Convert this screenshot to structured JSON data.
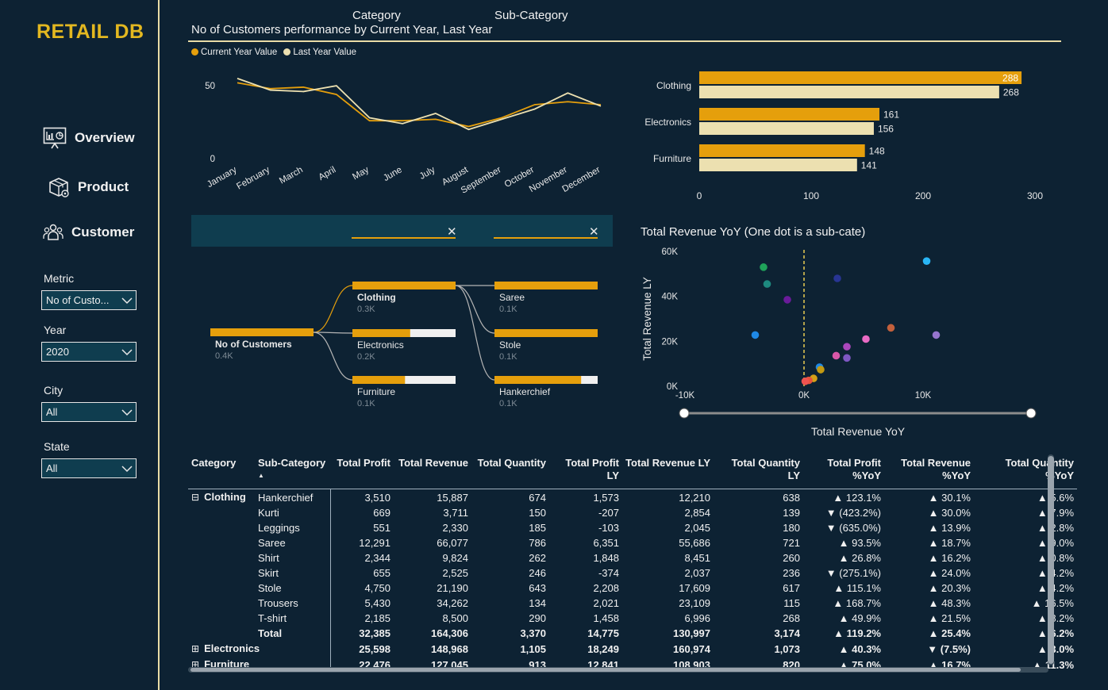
{
  "brand": "RETAIL DB",
  "nav": [
    {
      "label": "Overview",
      "icon": "monitor-chart-icon"
    },
    {
      "label": "Product",
      "icon": "package-icon"
    },
    {
      "label": "Customer",
      "icon": "users-icon"
    }
  ],
  "filters": [
    {
      "label": "Metric",
      "value": "No of Custo..."
    },
    {
      "label": "Year",
      "value": "2020"
    },
    {
      "label": "City",
      "value": "All"
    },
    {
      "label": "State",
      "value": "All"
    }
  ],
  "header": {
    "title": "No of Customers performance by Current Year, Last Year",
    "legend": [
      {
        "name": "Current Year Value",
        "color": "#e59f0c"
      },
      {
        "name": "Last Year Value",
        "color": "#ece0b0"
      }
    ]
  },
  "line_chart": {
    "type": "line",
    "x": [
      "January",
      "February",
      "March",
      "April",
      "May",
      "June",
      "July",
      "August",
      "September",
      "October",
      "November",
      "December"
    ],
    "y_ticks": [
      "0",
      "50"
    ],
    "ylim": [
      0,
      62
    ],
    "series": [
      {
        "name": "Current Year Value",
        "color": "#e59f0c",
        "values": [
          52,
          48,
          49,
          44,
          26,
          26,
          27,
          22,
          28,
          37,
          39,
          37
        ]
      },
      {
        "name": "Last Year Value",
        "color": "#ece0b0",
        "values": [
          55,
          47,
          46,
          50,
          28,
          24,
          31,
          20,
          27,
          34,
          45,
          36
        ]
      }
    ]
  },
  "bar_chart": {
    "type": "bar",
    "categories": [
      "Clothing",
      "Electronics",
      "Furniture"
    ],
    "series": [
      {
        "name": "Current Year Value",
        "color": "#e59f0c",
        "values": [
          288,
          161,
          148
        ],
        "labels": [
          "288",
          "161",
          "148"
        ]
      },
      {
        "name": "Last Year Value",
        "color": "#ece0b0",
        "values": [
          268,
          156,
          141
        ],
        "labels": [
          "268",
          "156",
          "141"
        ]
      }
    ],
    "x_ticks": [
      "0",
      "100",
      "200",
      "300"
    ],
    "xlim": [
      0,
      300
    ]
  },
  "decomp": {
    "levels": [
      "Category",
      "Sub-Category"
    ],
    "root": {
      "label": "No of Customers",
      "value": "0.4K",
      "fill": 1.0
    },
    "categories": [
      {
        "label": "Clothing",
        "value": "0.3K",
        "fill": 1.0
      },
      {
        "label": "Electronics",
        "value": "0.2K",
        "fill": 0.56
      },
      {
        "label": "Furniture",
        "value": "0.1K",
        "fill": 0.51
      }
    ],
    "subcategories": [
      {
        "label": "Saree",
        "value": "0.1K",
        "fill": 1.0
      },
      {
        "label": "Stole",
        "value": "0.1K",
        "fill": 1.0
      },
      {
        "label": "Hankerchief",
        "value": "0.1K",
        "fill": 0.84
      }
    ]
  },
  "scatter": {
    "type": "scatter",
    "title": "Total Revenue YoY (One dot is a sub-cate)",
    "xlabel": "Total Revenue YoY",
    "ylabel": "Total Revenue LY",
    "x_ticks": [
      {
        "v": -10000,
        "label": "-10K"
      },
      {
        "v": 0,
        "label": "0K"
      },
      {
        "v": 10000,
        "label": "10K"
      }
    ],
    "y_ticks": [
      {
        "v": 0,
        "label": "0K"
      },
      {
        "v": 20000,
        "label": "20K"
      },
      {
        "v": 40000,
        "label": "40K"
      },
      {
        "v": 60000,
        "label": "60K"
      }
    ],
    "xlim": [
      -10000,
      15000
    ],
    "ylim": [
      0,
      60000
    ],
    "reference_x": 0,
    "points": [
      {
        "x": -3400,
        "y": 53000,
        "color": "#1fa35a"
      },
      {
        "x": -3100,
        "y": 45500,
        "color": "#1e8a80"
      },
      {
        "x": -1400,
        "y": 38500,
        "color": "#6a1b9a"
      },
      {
        "x": -4100,
        "y": 22800,
        "color": "#1e88e5"
      },
      {
        "x": 2800,
        "y": 48000,
        "color": "#283593"
      },
      {
        "x": 10300,
        "y": 55700,
        "color": "#29b6f6"
      },
      {
        "x": 7300,
        "y": 26000,
        "color": "#c2603c"
      },
      {
        "x": 11100,
        "y": 22800,
        "color": "#9575cd"
      },
      {
        "x": 5200,
        "y": 21000,
        "color": "#e96bc4"
      },
      {
        "x": 3600,
        "y": 17600,
        "color": "#ab47bc"
      },
      {
        "x": 2700,
        "y": 13600,
        "color": "#d957a8"
      },
      {
        "x": 3600,
        "y": 12600,
        "color": "#7e57c2"
      },
      {
        "x": 1300,
        "y": 8500,
        "color": "#1e88e5"
      },
      {
        "x": 1400,
        "y": 7400,
        "color": "#c49a12"
      },
      {
        "x": 800,
        "y": 3500,
        "color": "#d4a017"
      },
      {
        "x": 400,
        "y": 2600,
        "color": "#e5533c"
      },
      {
        "x": 100,
        "y": 2200,
        "color": "#ef5350"
      }
    ]
  },
  "table": {
    "columns": [
      {
        "label": "Category",
        "num": false
      },
      {
        "label": "Sub-Category",
        "num": false
      },
      {
        "label": "Total Profit",
        "num": true
      },
      {
        "label": "Total Revenue",
        "num": true
      },
      {
        "label": "Total Quantity",
        "num": true
      },
      {
        "label": "Total Profit LY",
        "num": true
      },
      {
        "label": "Total Revenue LY",
        "num": true
      },
      {
        "label": "Total Quantity LY",
        "num": true
      },
      {
        "label": "Total Profit %YoY",
        "num": true
      },
      {
        "label": "Total Revenue %YoY",
        "num": true
      },
      {
        "label": "Total Quantity %YoY",
        "num": true
      }
    ],
    "rows": [
      {
        "toggle": "⊟",
        "category": "Clothing",
        "cells": [
          "Hankerchief",
          "3,510",
          "15,887",
          "674",
          "1,573",
          "12,210",
          "638",
          "▲ 123.1%",
          "▲ 30.1%",
          "▲ 5.6%"
        ],
        "bold": false
      },
      {
        "toggle": "",
        "category": "",
        "cells": [
          "Kurti",
          "669",
          "3,711",
          "150",
          "-207",
          "2,854",
          "139",
          "▼ (423.2%)",
          "▲ 30.0%",
          "▲ 7.9%"
        ],
        "bold": false
      },
      {
        "toggle": "",
        "category": "",
        "cells": [
          "Leggings",
          "551",
          "2,330",
          "185",
          "-103",
          "2,045",
          "180",
          "▼ (635.0%)",
          "▲ 13.9%",
          "▲ 2.8%"
        ],
        "bold": false
      },
      {
        "toggle": "",
        "category": "",
        "cells": [
          "Saree",
          "12,291",
          "66,077",
          "786",
          "6,351",
          "55,686",
          "721",
          "▲ 93.5%",
          "▲ 18.7%",
          "▲ 9.0%"
        ],
        "bold": false
      },
      {
        "toggle": "",
        "category": "",
        "cells": [
          "Shirt",
          "2,344",
          "9,824",
          "262",
          "1,848",
          "8,451",
          "260",
          "▲ 26.8%",
          "▲ 16.2%",
          "▲ 0.8%"
        ],
        "bold": false
      },
      {
        "toggle": "",
        "category": "",
        "cells": [
          "Skirt",
          "655",
          "2,525",
          "246",
          "-374",
          "2,037",
          "236",
          "▼ (275.1%)",
          "▲ 24.0%",
          "▲ 4.2%"
        ],
        "bold": false
      },
      {
        "toggle": "",
        "category": "",
        "cells": [
          "Stole",
          "4,750",
          "21,190",
          "643",
          "2,208",
          "17,609",
          "617",
          "▲ 115.1%",
          "▲ 20.3%",
          "▲ 4.2%"
        ],
        "bold": false
      },
      {
        "toggle": "",
        "category": "",
        "cells": [
          "Trousers",
          "5,430",
          "34,262",
          "134",
          "2,021",
          "23,109",
          "115",
          "▲ 168.7%",
          "▲ 48.3%",
          "▲ 16.5%"
        ],
        "bold": false
      },
      {
        "toggle": "",
        "category": "",
        "cells": [
          "T-shirt",
          "2,185",
          "8,500",
          "290",
          "1,458",
          "6,996",
          "268",
          "▲ 49.9%",
          "▲ 21.5%",
          "▲ 8.2%"
        ],
        "bold": false
      },
      {
        "toggle": "",
        "category": "",
        "cells": [
          "Total",
          "32,385",
          "164,306",
          "3,370",
          "14,775",
          "130,997",
          "3,174",
          "▲ 119.2%",
          "▲ 25.4%",
          "▲ 6.2%"
        ],
        "bold": true
      },
      {
        "toggle": "⊞",
        "category": "Electronics",
        "cells": [
          "",
          "25,598",
          "148,968",
          "1,105",
          "18,249",
          "160,974",
          "1,073",
          "▲ 40.3%",
          "▼ (7.5%)",
          "▲ 3.0%"
        ],
        "bold": true
      },
      {
        "toggle": "⊞",
        "category": "Furniture",
        "cells": [
          "",
          "22,476",
          "127,045",
          "913",
          "12,841",
          "108,903",
          "820",
          "▲ 75.0%",
          "▲ 16.7%",
          "▲ 11.3%"
        ],
        "bold": true
      }
    ]
  }
}
